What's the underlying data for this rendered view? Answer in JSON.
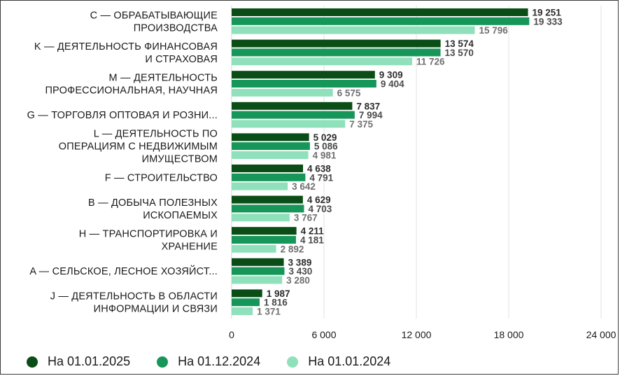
{
  "chart_data": {
    "type": "bar",
    "orientation": "horizontal",
    "categories": [
      [
        "C — ОБРАБАТЫВАЮЩИЕ",
        "ПРОИЗВОДСТВА"
      ],
      [
        "K — ДЕЯТЕЛЬНОСТЬ ФИНАНСОВАЯ",
        "И СТРАХОВАЯ"
      ],
      [
        "M — ДЕЯТЕЛЬНОСТЬ",
        "ПРОФЕССИОНАЛЬНАЯ, НАУЧНАЯ"
      ],
      [
        "G — ТОРГОВЛЯ ОПТОВАЯ И РОЗНИ..."
      ],
      [
        "L — ДЕЯТЕЛЬНОСТЬ ПО",
        "ОПЕРАЦИЯМ С НЕДВИЖИМЫМ",
        "ИМУЩЕСТВОМ"
      ],
      [
        "F — СТРОИТЕЛЬСТВО"
      ],
      [
        "B — ДОБЫЧА ПОЛЕЗНЫХ",
        "ИСКОПАЕМЫХ"
      ],
      [
        "H — ТРАНСПОРТИРОВКА И",
        "ХРАНЕНИЕ"
      ],
      [
        "A — СЕЛЬСКОЕ, ЛЕСНОЕ ХОЗЯЙСТ..."
      ],
      [
        "J — ДЕЯТЕЛЬНОСТЬ В ОБЛАСТИ",
        "ИНФОРМАЦИИ И СВЯЗИ"
      ]
    ],
    "series": [
      {
        "name": "На 01.01.2025",
        "color": "#0b4d16",
        "labelColor": "#2b2b2b",
        "values": [
          19251,
          13574,
          9309,
          7837,
          5029,
          4638,
          4629,
          4211,
          3389,
          1987
        ],
        "labels": [
          "19 251",
          "13 574",
          "9 309",
          "7 837",
          "5 029",
          "4 638",
          "4 629",
          "4 211",
          "3 389",
          "1 987"
        ]
      },
      {
        "name": "На 01.12.2024",
        "color": "#17965a",
        "labelColor": "#4a4a4a",
        "values": [
          19333,
          13570,
          9404,
          7994,
          5086,
          4791,
          4703,
          4181,
          3430,
          1816
        ],
        "labels": [
          "19 333",
          "13 570",
          "9 404",
          "7 994",
          "5 086",
          "4 791",
          "4 703",
          "4 181",
          "3 430",
          "1 816"
        ]
      },
      {
        "name": "На 01.01.2024",
        "color": "#8fe0bb",
        "labelColor": "#707070",
        "values": [
          15796,
          11726,
          6575,
          7375,
          4981,
          3642,
          3767,
          2892,
          3280,
          1371
        ],
        "labels": [
          "15 796",
          "11 726",
          "6 575",
          "7 375",
          "4 981",
          "3 642",
          "3 767",
          "2 892",
          "3 280",
          "1 371"
        ]
      }
    ],
    "xlim": [
      0,
      24000
    ],
    "xticks": [
      0,
      6000,
      12000,
      18000,
      24000
    ],
    "xtick_labels": [
      "0",
      "6 000",
      "12 000",
      "18 000",
      "24 000"
    ],
    "grid": "vertical",
    "legend_position": "bottom-left"
  },
  "legend": {
    "items": [
      "На 01.01.2025",
      "На 01.12.2024",
      "На 01.01.2024"
    ],
    "colors": [
      "#0b4d16",
      "#17965a",
      "#8fe0bb"
    ]
  }
}
